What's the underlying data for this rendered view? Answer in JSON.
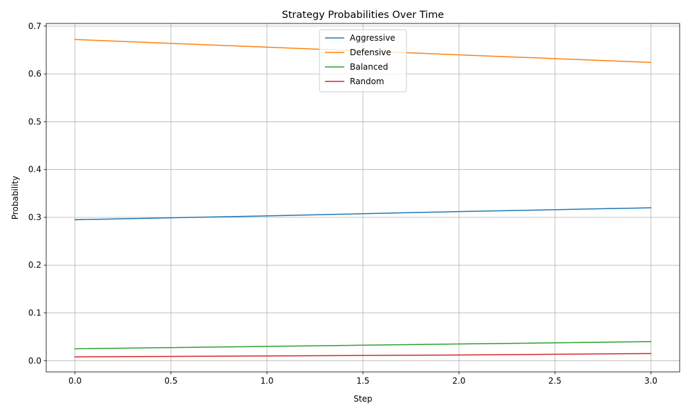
{
  "chart_data": {
    "type": "line",
    "title": "Strategy Probabilities Over Time",
    "xlabel": "Step",
    "ylabel": "Probability",
    "x": [
      0,
      1,
      2,
      3
    ],
    "xlim": [
      -0.15,
      3.15
    ],
    "ylim": [
      -0.0234,
      0.7056
    ],
    "x_ticks": [
      0.0,
      0.5,
      1.0,
      1.5,
      2.0,
      2.5,
      3.0
    ],
    "x_tick_labels": [
      "0.0",
      "0.5",
      "1.0",
      "1.5",
      "2.0",
      "2.5",
      "3.0"
    ],
    "y_ticks": [
      0.0,
      0.1,
      0.2,
      0.3,
      0.4,
      0.5,
      0.6,
      0.7
    ],
    "y_tick_labels": [
      "0.0",
      "0.1",
      "0.2",
      "0.3",
      "0.4",
      "0.5",
      "0.6",
      "0.7"
    ],
    "grid": true,
    "legend_position": "upper-center",
    "series": [
      {
        "name": "Aggressive",
        "color": "#1f77b4",
        "values": [
          0.295,
          0.303,
          0.312,
          0.32
        ]
      },
      {
        "name": "Defensive",
        "color": "#ff7f0e",
        "values": [
          0.672,
          0.656,
          0.64,
          0.624
        ]
      },
      {
        "name": "Balanced",
        "color": "#2ca02c",
        "values": [
          0.025,
          0.03,
          0.035,
          0.04
        ]
      },
      {
        "name": "Random",
        "color": "#d62728",
        "values": [
          0.008,
          0.01,
          0.012,
          0.015
        ]
      }
    ]
  }
}
